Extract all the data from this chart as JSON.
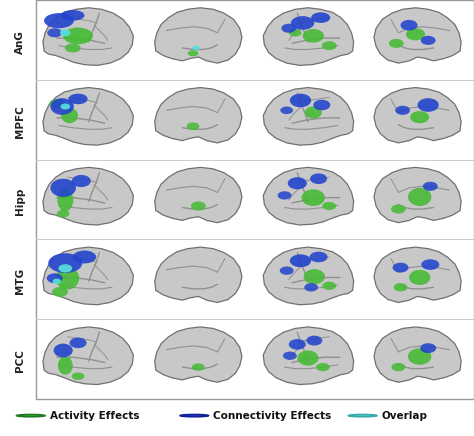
{
  "rows": [
    "AnG",
    "MPFC",
    "Hipp",
    "MTG",
    "PCC"
  ],
  "n_cols": 4,
  "n_rows": 5,
  "figsize": [
    4.74,
    4.36
  ],
  "dpi": 100,
  "background_color": "#ffffff",
  "brain_fill": "#c8c8c8",
  "brain_edge": "#707070",
  "sulci_color": "#909090",
  "activity_color": "#44bb33",
  "connectivity_color": "#2244cc",
  "overlap_color": "#55dddd",
  "legend_activity": "Activity Effects",
  "legend_connectivity": "Connectivity Effects",
  "legend_overlap": "Overlap",
  "row_label_fontsize": 7.5,
  "legend_fontsize": 7.5,
  "border_color": "#999999",
  "cell_sep_color": "#cccccc"
}
